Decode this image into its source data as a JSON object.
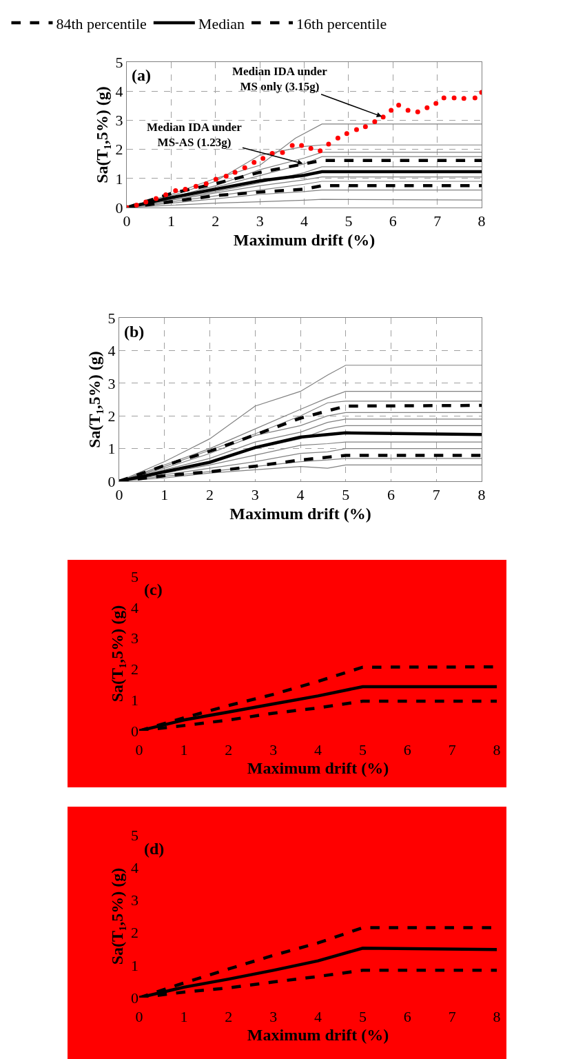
{
  "chart_data": [
    {
      "type": "line",
      "xlabel": "Maximum drift (%)",
      "ylabel": "Sa(T₁,5%) (g)",
      "xlim": [
        0,
        8
      ],
      "ylim": [
        0,
        5
      ],
      "xticks": [
        0,
        1,
        2,
        3,
        4,
        5,
        6,
        7,
        8
      ],
      "yticks": [
        0,
        1,
        2,
        3,
        4,
        5
      ],
      "grid": true,
      "legend": "top",
      "line_style": "solid",
      "annotations": [
        {
          "text": "Median IDA under\nMS only (3.15g)",
          "x": 5.78,
          "y": 3.11
        },
        {
          "text": "Median IDA under\nMS-AS (1.23g)",
          "x": 4,
          "y": 1.5
        },
        "(a)"
      ],
      "series": [
        {
          "color": "#808080",
          "x": [
            0,
            1,
            2,
            3,
            3.8,
            4.4,
            8
          ],
          "values": [
            0,
            0.45,
            1.0,
            1.45,
            2.38,
            2.87,
            2.87
          ]
        },
        {
          "color": "#808080",
          "x": [
            0,
            1,
            2,
            3,
            4,
            4.4,
            8
          ],
          "values": [
            0,
            0.4,
            0.9,
            1.8,
            2.1,
            2.15,
            2.15
          ]
        },
        {
          "color": "#808080",
          "x": [
            0,
            1,
            2,
            3,
            4,
            4.4,
            8
          ],
          "values": [
            0,
            0.35,
            0.75,
            1.3,
            1.7,
            1.9,
            1.9
          ]
        },
        {
          "color": "#808080",
          "x": [
            0,
            1,
            2,
            3,
            4,
            4.4,
            8
          ],
          "values": [
            0,
            0.32,
            0.7,
            1.1,
            1.5,
            1.75,
            1.75
          ]
        },
        {
          "color": "#808080",
          "x": [
            0,
            1,
            2,
            3,
            4,
            4.4,
            8
          ],
          "values": [
            0,
            0.28,
            0.55,
            0.85,
            1.2,
            1.4,
            1.4
          ]
        },
        {
          "color": "#808080",
          "x": [
            0,
            1,
            2,
            3,
            4,
            4.4,
            8
          ],
          "values": [
            0,
            0.25,
            0.5,
            0.75,
            0.95,
            1.05,
            1.05
          ]
        },
        {
          "color": "#808080",
          "x": [
            0,
            1,
            2,
            3,
            4,
            4.4,
            8
          ],
          "values": [
            0,
            0.2,
            0.4,
            0.6,
            0.8,
            0.9,
            0.9
          ]
        },
        {
          "color": "#808080",
          "x": [
            0,
            1,
            2,
            3,
            4,
            4.4,
            8
          ],
          "values": [
            0,
            0.15,
            0.3,
            0.45,
            0.55,
            0.6,
            0.6
          ]
        },
        {
          "color": "#808080",
          "x": [
            0,
            1,
            2,
            3,
            4,
            4.4,
            8
          ],
          "values": [
            0,
            0.08,
            0.15,
            0.2,
            0.25,
            0.28,
            0.26
          ]
        },
        {
          "type": "scatter",
          "marker": "circle",
          "color": "#ff0000",
          "x": [
            0,
            0.22,
            0.43,
            0.66,
            0.88,
            1.1,
            1.32,
            1.56,
            1.79,
            2.01,
            2.24,
            2.44,
            2.66,
            2.87,
            3.07,
            3.28,
            3.51,
            3.73,
            3.94,
            4.15,
            4.36,
            4.55,
            4.76,
            4.96,
            5.18,
            5.38,
            5.59,
            5.78,
            5.96,
            6.13,
            6.34,
            6.56,
            6.77,
            6.97,
            7.15,
            7.38,
            7.6,
            7.85,
            8
          ],
          "values": [
            0,
            0.08,
            0.19,
            0.31,
            0.44,
            0.58,
            0.63,
            0.73,
            0.82,
            0.97,
            1.08,
            1.21,
            1.37,
            1.55,
            1.69,
            1.86,
            1.89,
            2.13,
            2.13,
            2.03,
            1.95,
            2.18,
            2.39,
            2.54,
            2.68,
            2.78,
            2.95,
            3.11,
            3.34,
            3.52,
            3.34,
            3.29,
            3.43,
            3.58,
            3.77,
            3.77,
            3.75,
            3.77,
            3.96
          ]
        },
        {
          "name": "84th percentile",
          "color": "#000000",
          "line_style": "dashed",
          "x": [
            0,
            1,
            2,
            3,
            4,
            4.4,
            8
          ],
          "values": [
            0,
            0.48,
            0.82,
            1.21,
            1.5,
            1.62,
            1.62
          ]
        },
        {
          "name": "Median",
          "color": "#000000",
          "x": [
            0,
            1,
            2,
            3,
            4,
            4.4,
            8
          ],
          "values": [
            0,
            0.34,
            0.63,
            0.92,
            1.11,
            1.23,
            1.23
          ]
        },
        {
          "name": "16th percentile",
          "color": "#000000",
          "line_style": "dashed",
          "x": [
            0,
            1,
            2,
            3,
            4,
            4.4,
            8
          ],
          "values": [
            0,
            0.2,
            0.41,
            0.53,
            0.63,
            0.75,
            0.75
          ]
        }
      ]
    },
    {
      "type": "line",
      "xlabel": "Maximum drift (%)",
      "ylabel": "Sa(T₁,5%) (g)",
      "xlim": [
        0,
        8
      ],
      "ylim": [
        0,
        5
      ],
      "xticks": [
        0,
        1,
        2,
        3,
        4,
        5,
        6,
        7,
        8
      ],
      "yticks": [
        0,
        1,
        2,
        3,
        4,
        5
      ],
      "grid": true,
      "line_style": "solid",
      "annotations": [
        "(b)"
      ],
      "series": [
        {
          "color": "#808080",
          "x": [
            0,
            1,
            2,
            3,
            4,
            4.6,
            5,
            8
          ],
          "values": [
            0,
            0.6,
            1.3,
            2.3,
            2.75,
            3.25,
            3.55,
            3.55
          ]
        },
        {
          "color": "#808080",
          "x": [
            0,
            1,
            2,
            3,
            4,
            4.6,
            5,
            8
          ],
          "values": [
            0,
            0.5,
            1.0,
            1.6,
            2.2,
            2.55,
            2.75,
            2.75
          ]
        },
        {
          "color": "#808080",
          "x": [
            0,
            1,
            2,
            3,
            4,
            4.6,
            5,
            8
          ],
          "values": [
            0,
            0.45,
            0.95,
            1.45,
            2.0,
            2.4,
            2.45,
            2.45
          ]
        },
        {
          "color": "#808080",
          "x": [
            0,
            1,
            2,
            3,
            4,
            4.6,
            5,
            8
          ],
          "values": [
            0,
            0.4,
            0.85,
            1.4,
            1.7,
            2.0,
            2.1,
            2.1
          ]
        },
        {
          "color": "#808080",
          "x": [
            0,
            1,
            2,
            3,
            4,
            4.6,
            5,
            8
          ],
          "values": [
            0,
            0.35,
            0.7,
            1.2,
            1.5,
            1.8,
            1.9,
            1.9
          ]
        },
        {
          "color": "#808080",
          "x": [
            0,
            1,
            2,
            3,
            4,
            4.6,
            5,
            8
          ],
          "values": [
            0,
            0.3,
            0.6,
            1.0,
            1.3,
            1.6,
            1.7,
            1.7
          ]
        },
        {
          "color": "#808080",
          "x": [
            0,
            1,
            2,
            3,
            4,
            4.6,
            5,
            8
          ],
          "values": [
            0,
            0.25,
            0.5,
            0.8,
            1.1,
            1.15,
            1.2,
            1.2
          ]
        },
        {
          "color": "#808080",
          "x": [
            0,
            1,
            2,
            3,
            4,
            4.6,
            5,
            8
          ],
          "values": [
            0,
            0.2,
            0.4,
            0.6,
            0.85,
            0.9,
            1.0,
            1.0
          ]
        },
        {
          "color": "#808080",
          "x": [
            0,
            1,
            2,
            3,
            4,
            4.6,
            5,
            8
          ],
          "values": [
            0,
            0.15,
            0.3,
            0.45,
            0.6,
            0.65,
            0.7,
            0.7
          ]
        },
        {
          "color": "#808080",
          "x": [
            0,
            1,
            2,
            3,
            4,
            4.6,
            5,
            8
          ],
          "values": [
            0,
            0.1,
            0.25,
            0.35,
            0.45,
            0.4,
            0.5,
            0.5
          ]
        },
        {
          "color": "#000000",
          "line_style": "dashed",
          "x": [
            0,
            1,
            2,
            3,
            4,
            5,
            8
          ],
          "values": [
            0,
            0.48,
            0.92,
            1.42,
            1.93,
            2.3,
            2.32
          ]
        },
        {
          "color": "#000000",
          "x": [
            0,
            1,
            2,
            3,
            4,
            5,
            8
          ],
          "values": [
            0,
            0.29,
            0.58,
            1.03,
            1.35,
            1.48,
            1.43
          ]
        },
        {
          "color": "#000000",
          "line_style": "dashed",
          "x": [
            0,
            1,
            2,
            3,
            4,
            5,
            8
          ],
          "values": [
            0,
            0.17,
            0.29,
            0.46,
            0.65,
            0.79,
            0.79
          ]
        }
      ]
    },
    {
      "type": "line",
      "xlabel": "Maximum drift (%)",
      "ylabel": "Sa(T₁,5%) (g)",
      "xlim": [
        0,
        8
      ],
      "ylim": [
        0,
        5
      ],
      "xticks": [
        0,
        1,
        2,
        3,
        4,
        5,
        6,
        7,
        8
      ],
      "yticks": [
        0,
        1,
        2,
        3,
        4,
        5
      ],
      "line_style": "solid",
      "annotations": [
        "(c)"
      ],
      "series": [
        {
          "color": "#000000",
          "line_style": "dashed",
          "x": [
            0,
            1,
            2,
            3,
            4,
            5,
            8
          ],
          "values": [
            0,
            0.42,
            0.82,
            1.18,
            1.6,
            2.06,
            2.07
          ]
        },
        {
          "color": "#000000",
          "x": [
            0,
            1,
            2,
            3,
            4,
            5,
            8
          ],
          "values": [
            0,
            0.35,
            0.61,
            0.87,
            1.13,
            1.43,
            1.43
          ]
        },
        {
          "color": "#000000",
          "line_style": "dashed",
          "x": [
            0,
            1,
            2,
            3,
            4,
            5,
            8
          ],
          "values": [
            0,
            0.17,
            0.35,
            0.57,
            0.74,
            0.96,
            0.96
          ]
        }
      ]
    },
    {
      "type": "line",
      "xlabel": "Maximum drift (%)",
      "ylabel": "Sa(T₁,5%) (g)",
      "xlim": [
        0,
        8
      ],
      "ylim": [
        0,
        5
      ],
      "xticks": [
        0,
        1,
        2,
        3,
        4,
        5,
        6,
        7,
        8
      ],
      "yticks": [
        0,
        1,
        2,
        3,
        4,
        5
      ],
      "line_style": "solid",
      "annotations": [
        "(d)"
      ],
      "series": [
        {
          "color": "#000000",
          "line_style": "dashed",
          "x": [
            0,
            1,
            2,
            3,
            4,
            5,
            8
          ],
          "values": [
            0,
            0.45,
            0.88,
            1.3,
            1.68,
            2.15,
            2.15
          ]
        },
        {
          "color": "#000000",
          "x": [
            0,
            1,
            2,
            3,
            4,
            5,
            8
          ],
          "values": [
            0,
            0.32,
            0.57,
            0.84,
            1.13,
            1.52,
            1.48
          ]
        },
        {
          "color": "#000000",
          "line_style": "dashed",
          "x": [
            0,
            1,
            2,
            3,
            4,
            5,
            8
          ],
          "values": [
            0,
            0.17,
            0.3,
            0.48,
            0.65,
            0.84,
            0.84
          ]
        }
      ]
    }
  ]
}
